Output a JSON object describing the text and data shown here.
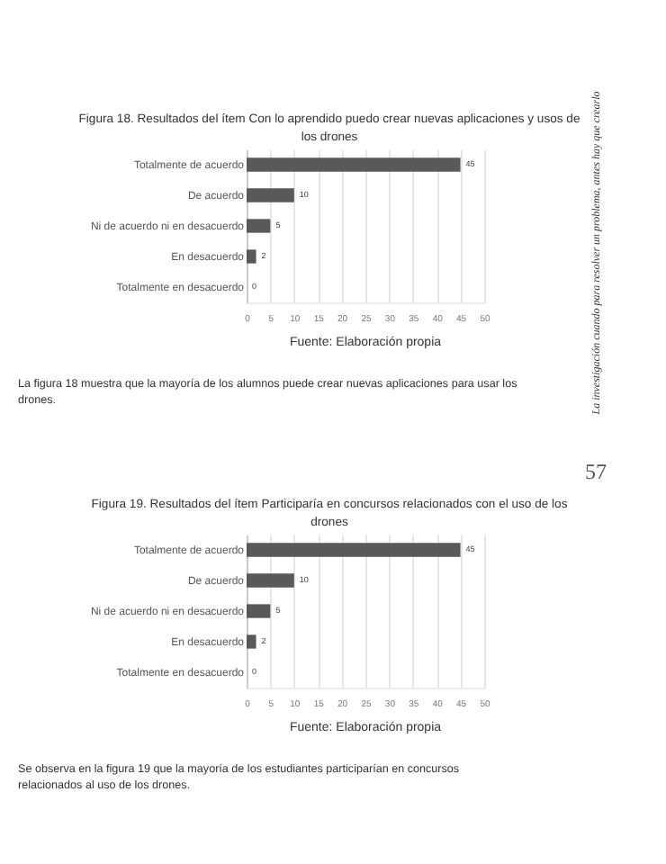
{
  "chart_data": [
    {
      "type": "bar",
      "orientation": "horizontal",
      "title": "Figura 18. Resultados del ítem Con lo aprendido puedo crear nuevas aplicaciones y usos de los drones",
      "categories": [
        "Totalmente de acuerdo",
        "De acuerdo",
        "Ni de acuerdo ni en desacuerdo",
        "En desacuerdo",
        "Totalmente en desacuerdo"
      ],
      "values": [
        45,
        10,
        5,
        2,
        0
      ],
      "color": "#595959",
      "data_labels": true,
      "xlim": [
        0,
        50
      ],
      "xticks": [
        0,
        5,
        10,
        15,
        20,
        25,
        30,
        35,
        40,
        45,
        50
      ],
      "grid": "x",
      "annotations": [
        "Fuente: Elaboración propia",
        "La figura 18 muestra que la mayoría de los alumnos puede crear nuevas aplicaciones para usar los drones.",
        "La investigación cuando para resolver un problema, antes hay que crearlo"
      ]
    },
    {
      "type": "bar",
      "orientation": "horizontal",
      "title": "Figura 19. Resultados del ítem Participaría en concursos relacionados con el uso de los drones",
      "categories": [
        "Totalmente de acuerdo",
        "De acuerdo",
        "Ni de acuerdo ni en desacuerdo",
        "En desacuerdo",
        "Totalmente en desacuerdo"
      ],
      "values": [
        45,
        10,
        5,
        2,
        0
      ],
      "color": "#595959",
      "data_labels": true,
      "xlim": [
        0,
        50
      ],
      "xticks": [
        0,
        5,
        10,
        15,
        20,
        25,
        30,
        35,
        40,
        45,
        50
      ],
      "grid": "x",
      "annotations": [
        "Fuente: Elaboración propia",
        "Se observa en la figura 19 que la mayoría de los estudiantes participarían en concursos relacionados al uso de los drones.",
        "57"
      ]
    }
  ]
}
